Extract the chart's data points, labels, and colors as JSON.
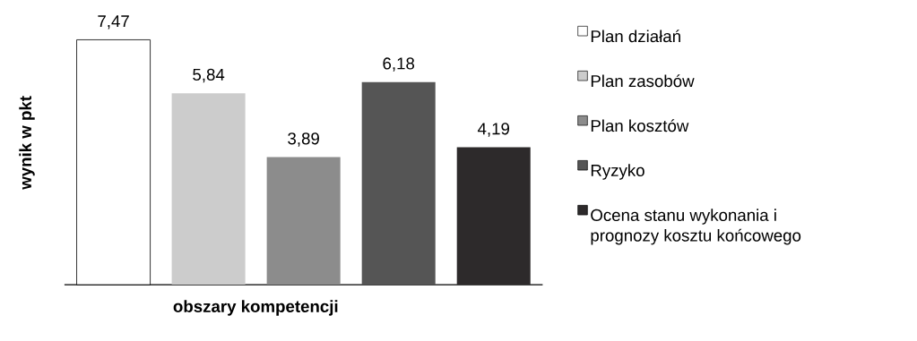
{
  "chart_data": {
    "type": "bar",
    "xlabel": "obszary kompetencji",
    "ylabel": "wynik w pkt",
    "categories": [
      null
    ],
    "legend": "right",
    "data_labels": true,
    "series": [
      {
        "name": "Plan działań",
        "color": "#ffffff",
        "values": [
          7.47
        ],
        "value_labels": [
          "7,47"
        ]
      },
      {
        "name": "Plan zasobów",
        "color": "#cccccc",
        "values": [
          5.84
        ],
        "value_labels": [
          "5,84"
        ]
      },
      {
        "name": "Plan kosztów",
        "color": "#8c8c8c",
        "values": [
          3.89
        ],
        "value_labels": [
          "3,89"
        ]
      },
      {
        "name": "Ryzyko",
        "color": "#555555",
        "values": [
          6.18
        ],
        "value_labels": [
          "6,18"
        ]
      },
      {
        "name": "Ocena stanu wykonania i prognozy kosztu końcowego",
        "color": "#2d2a2b",
        "values": [
          4.19
        ],
        "value_labels": [
          "4,19"
        ]
      }
    ]
  }
}
